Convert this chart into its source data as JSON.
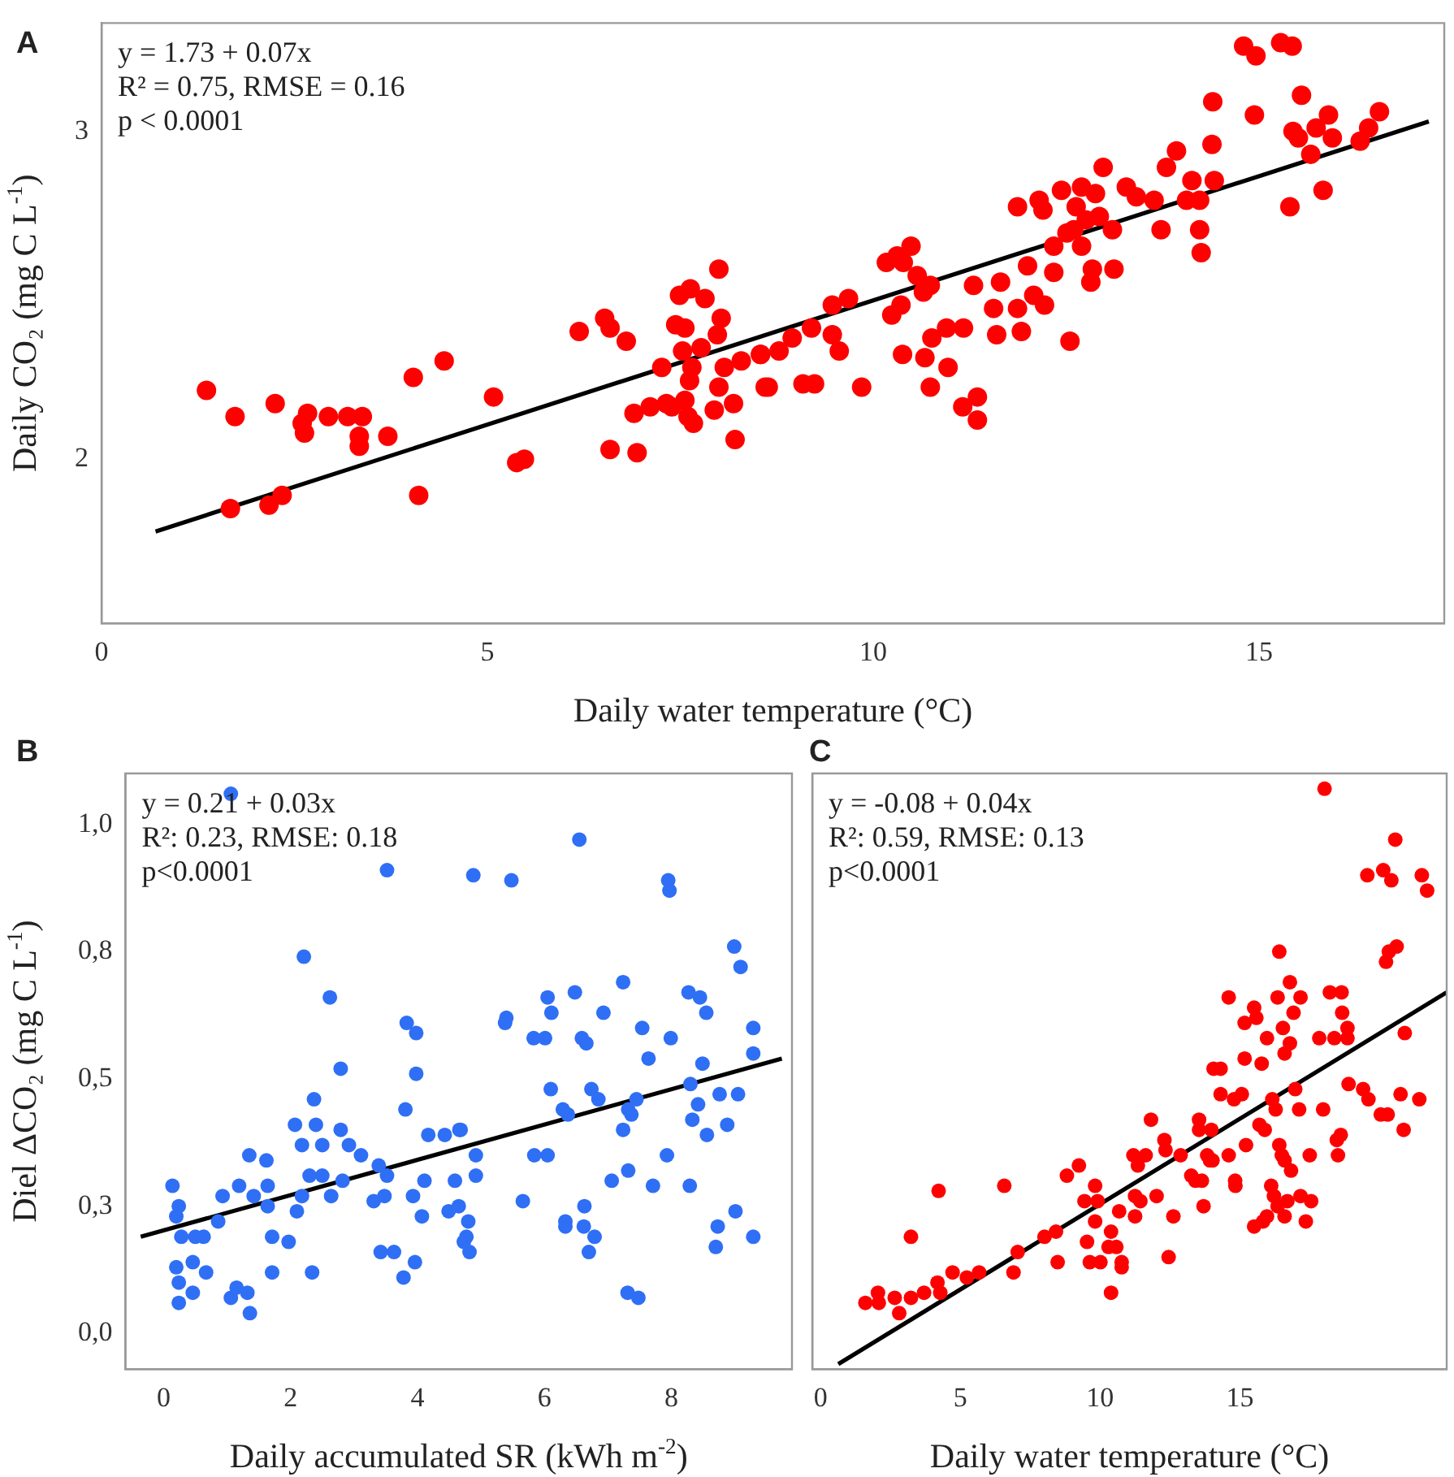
{
  "chart_data": [
    {
      "type": "scatter",
      "title": "A",
      "xlabel": "Daily water temperature (°C)",
      "ylabel": "Daily CO₂ (mg C L$^{-1}$)",
      "annotations": [
        "y = 1.73 + 0.07x",
        "R² = 0.75, RMSE = 0.16",
        "p < 0.0001"
      ],
      "xlim": [
        0,
        17.4
      ],
      "xticks": [
        0,
        5,
        10,
        15
      ],
      "ylim": [
        1.5,
        3.33
      ],
      "yticks": [
        2,
        3
      ],
      "grid": false,
      "legend": false,
      "series": [
        {
          "marker": "circle",
          "color": "#ff0000",
          "x": [
            1.36,
            1.73,
            1.67,
            2.17,
            2.34,
            2.25,
            2.67,
            2.6,
            2.63,
            2.94,
            3.19,
            3.38,
            3.34,
            3.34,
            3.71,
            4.11,
            4.04,
            4.44,
            5.08,
            5.38,
            5.48,
            6.19,
            6.52,
            6.59,
            6.8,
            6.59,
            6.94,
            6.9,
            7.11,
            7.32,
            7.39,
            7.56,
            7.26,
            7.49,
            7.63,
            7.82,
            8.0,
            8.03,
            7.98,
            7.44,
            7.56,
            7.53,
            7.77,
            7.65,
            7.62,
            7.6,
            7.67,
            8.07,
            8.0,
            7.94,
            8.19,
            8.21,
            8.29,
            8.54,
            8.6,
            8.54,
            8.64,
            8.78,
            8.95,
            9.09,
            9.24,
            9.2,
            9.47,
            9.68,
            9.47,
            9.56,
            9.85,
            10.17,
            10.31,
            10.49,
            10.39,
            10.57,
            10.74,
            10.65,
            10.36,
            10.24,
            10.38,
            10.67,
            10.76,
            10.95,
            11.17,
            10.97,
            10.74,
            11.16,
            11.35,
            11.35,
            11.3,
            11.65,
            11.56,
            11.6,
            11.87,
            11.92,
            12.08,
            12.22,
            12.0,
            12.34,
            12.55,
            11.87,
            12.15,
            12.2,
            12.44,
            12.7,
            12.88,
            12.63,
            12.76,
            12.93,
            12.51,
            12.6,
            12.34,
            12.7,
            12.84,
            12.82,
            13.12,
            13.1,
            12.98,
            13.28,
            13.41,
            13.64,
            13.73,
            13.8,
            13.93,
            14.13,
            14.06,
            14.23,
            14.23,
            14.25,
            14.42,
            14.39,
            14.4,
            14.8,
            14.96,
            14.94,
            15.28,
            15.43,
            15.55,
            15.44,
            15.51,
            15.4,
            15.67,
            15.74,
            15.9,
            15.95,
            15.83,
            16.31,
            16.42,
            16.56
          ],
          "values": [
            2.21,
            2.13,
            1.85,
            1.86,
            1.89,
            2.17,
            2.14,
            2.11,
            2.08,
            2.13,
            2.13,
            2.13,
            2.07,
            2.04,
            2.07,
            1.89,
            2.25,
            2.3,
            2.19,
            1.99,
            2.0,
            2.39,
            2.43,
            2.4,
            2.36,
            2.03,
            2.02,
            2.14,
            2.16,
            2.17,
            2.16,
            2.18,
            2.28,
            2.5,
            2.52,
            2.49,
            2.58,
            2.43,
            2.38,
            2.41,
            2.4,
            2.33,
            2.34,
            2.28,
            2.24,
            2.13,
            2.11,
            2.28,
            2.22,
            2.15,
            2.17,
            2.06,
            2.3,
            2.32,
            2.22,
            2.32,
            2.22,
            2.33,
            2.37,
            2.23,
            2.23,
            2.4,
            2.47,
            2.49,
            2.38,
            2.33,
            2.22,
            2.6,
            2.62,
            2.65,
            2.6,
            2.56,
            2.53,
            2.51,
            2.47,
            2.44,
            2.32,
            2.31,
            2.37,
            2.4,
            2.4,
            2.28,
            2.22,
            2.16,
            2.19,
            2.12,
            2.53,
            2.54,
            2.46,
            2.38,
            2.46,
            2.39,
            2.5,
            2.47,
            2.59,
            2.57,
            2.36,
            2.77,
            2.79,
            2.76,
            2.82,
            2.83,
            2.81,
            2.77,
            2.73,
            2.74,
            2.69,
            2.7,
            2.65,
            2.65,
            2.58,
            2.54,
            2.58,
            2.7,
            2.89,
            2.83,
            2.8,
            2.79,
            2.7,
            2.89,
            2.94,
            2.85,
            2.79,
            2.79,
            2.7,
            2.63,
            2.85,
            2.96,
            3.09,
            3.26,
            3.23,
            3.05,
            3.27,
            3.26,
            3.11,
            3.0,
            2.98,
            2.77,
            2.93,
            3.01,
            3.05,
            2.98,
            2.82,
            2.97,
            3.01,
            3.06
          ]
        },
        {
          "type": "line",
          "marker": "none",
          "color": "#000000",
          "x": [
            0.7,
            17.2
          ],
          "values": [
            1.78,
            3.03
          ]
        }
      ]
    },
    {
      "type": "scatter",
      "title": "B",
      "xlabel": "Daily accumulated SR (kWh m$^{-2}$)",
      "ylabel": "Diel ΔCO₂ (mg C L$^{-1}$)",
      "annotations": [
        "y = 0.21 + 0.03x",
        "R²: 0.23, RMSE: 0.18",
        "p<0.0001"
      ],
      "xlim": [
        -0.6,
        9.9
      ],
      "xticks": [
        0,
        2,
        4,
        6,
        8
      ],
      "ylim": [
        -0.07,
        1.1
      ],
      "yticks": [
        {
          "value": 0,
          "label": "0,0"
        },
        {
          "value": 0.25,
          "label": "0,3"
        },
        {
          "value": 0.5,
          "label": "0,5"
        },
        {
          "value": 0.75,
          "label": "0,8"
        },
        {
          "value": 1,
          "label": "1,0"
        }
      ],
      "grid": false,
      "legend": false,
      "series": [
        {
          "marker": "circle",
          "color": "#2f6ff5",
          "x": [
            1.06,
            2.21,
            2.62,
            2.79,
            2.37,
            3.83,
            3.98,
            3.98,
            3.81,
            3.52,
            2.07,
            2.4,
            2.18,
            2.5,
            2.79,
            2.92,
            3.11,
            1.35,
            1.62,
            0.14,
            0.24,
            0.2,
            0.28,
            0.5,
            0.63,
            0.46,
            0.67,
            0.2,
            0.24,
            0.24,
            0.46,
            1.06,
            1.15,
            1.32,
            1.36,
            0.86,
            0.93,
            1.19,
            1.42,
            1.64,
            1.64,
            1.71,
            1.97,
            1.71,
            2.34,
            2.18,
            2.1,
            2.3,
            2.5,
            2.64,
            2.82,
            3.31,
            3.48,
            3.39,
            3.52,
            3.42,
            3.63,
            3.78,
            3.96,
            3.93,
            4.07,
            4.11,
            4.17,
            4.43,
            4.66,
            4.59,
            4.49,
            4.65,
            4.73,
            4.88,
            5.48,
            6.55,
            7.95,
            7.97,
            8.99,
            9.09,
            7.24,
            6.48,
            6.05,
            6.11,
            5.4,
            5.38,
            5.83,
            6.01,
            6.59,
            6.66,
            6.93,
            7.54,
            7.64,
            7.99,
            8.27,
            8.45,
            8.55,
            9.29,
            9.29,
            8.49,
            8.3,
            8.42,
            8.76,
            9.05,
            8.33,
            8.56,
            8.88,
            6.1,
            6.29,
            6.37,
            6.74,
            6.85,
            7.32,
            7.37,
            7.45,
            7.24,
            5.84,
            6.05,
            4.92,
            4.92,
            4.68,
            5.66,
            6.33,
            6.33,
            6.63,
            6.62,
            6.79,
            6.7,
            7.06,
            7.32,
            7.71,
            7.93,
            8.29,
            9.01,
            8.73,
            8.7,
            9.29,
            7.31,
            7.48,
            4.8,
            4.77,
            4.82
          ],
          "values": [
            1.06,
            0.74,
            0.66,
            0.52,
            0.46,
            0.61,
            0.59,
            0.51,
            0.44,
            0.91,
            0.41,
            0.41,
            0.37,
            0.37,
            0.4,
            0.37,
            0.35,
            0.35,
            0.34,
            0.29,
            0.25,
            0.23,
            0.19,
            0.19,
            0.19,
            0.14,
            0.12,
            0.13,
            0.1,
            0.06,
            0.08,
            0.07,
            0.09,
            0.08,
            0.04,
            0.22,
            0.27,
            0.29,
            0.27,
            0.29,
            0.25,
            0.19,
            0.18,
            0.12,
            0.12,
            0.27,
            0.24,
            0.31,
            0.31,
            0.27,
            0.3,
            0.26,
            0.27,
            0.33,
            0.31,
            0.16,
            0.16,
            0.11,
            0.14,
            0.27,
            0.23,
            0.3,
            0.39,
            0.39,
            0.4,
            0.3,
            0.24,
            0.25,
            0.18,
            0.9,
            0.89,
            0.97,
            0.89,
            0.87,
            0.76,
            0.72,
            0.69,
            0.67,
            0.66,
            0.63,
            0.62,
            0.61,
            0.58,
            0.58,
            0.58,
            0.57,
            0.63,
            0.6,
            0.54,
            0.58,
            0.67,
            0.66,
            0.63,
            0.6,
            0.55,
            0.53,
            0.49,
            0.45,
            0.47,
            0.47,
            0.42,
            0.39,
            0.41,
            0.48,
            0.44,
            0.43,
            0.48,
            0.46,
            0.44,
            0.43,
            0.46,
            0.4,
            0.35,
            0.35,
            0.35,
            0.31,
            0.4,
            0.26,
            0.22,
            0.21,
            0.25,
            0.21,
            0.19,
            0.16,
            0.3,
            0.32,
            0.29,
            0.35,
            0.29,
            0.24,
            0.21,
            0.17,
            0.19,
            0.08,
            0.07,
            0.22,
            0.19,
            0.16
          ]
        },
        {
          "type": "line",
          "marker": "none",
          "color": "#000000",
          "x": [
            -0.36,
            9.74
          ],
          "values": [
            0.19,
            0.54
          ]
        }
      ]
    },
    {
      "type": "scatter",
      "title": "C",
      "xlabel": "Daily water temperature (°C)",
      "annotations": [
        "y = -0.08 + 0.04x",
        "R²: 0.59, RMSE: 0.13",
        "p<0.0001"
      ],
      "xlim": [
        -0.3,
        22.4
      ],
      "xticks": [
        0,
        5,
        10,
        15
      ],
      "ylim": [
        -0.07,
        1.1
      ],
      "yticks": [
        0,
        0.25,
        0.5,
        0.75,
        1
      ],
      "tick_labels": "x",
      "grid": false,
      "legend": false,
      "series": [
        {
          "marker": "circle",
          "color": "#ff0000",
          "x": [
            1.6,
            2.05,
            2.08,
            2.65,
            2.81,
            3.23,
            3.7,
            4.18,
            4.28,
            3.23,
            4.22,
            4.72,
            5.23,
            5.67,
            6.57,
            6.9,
            7.05,
            8.01,
            8.42,
            8.48,
            8.81,
            9.24,
            9.44,
            9.82,
            9.91,
            9.63,
            10.01,
            9.53,
            9.82,
            10.39,
            10.39,
            10.68,
            10.77,
            10.58,
            10.3,
            18.03,
            20.56,
            19.56,
            20.13,
            20.42,
            21.51,
            21.7,
            20.61,
            20.33,
            20.23,
            16.41,
            16.79,
            14.6,
            16.35,
            17.17,
            18.22,
            18.64,
            15.51,
            15.59,
            15.17,
            16.92,
            16.54,
            18.66,
            18.85,
            18.85,
            18.38,
            17.84,
            15.97,
            16.79,
            16.6,
            20.9,
            15.17,
            15.78,
            14.06,
            14.31,
            14.31,
            14.79,
            15.07,
            16.16,
            16.28,
            16.98,
            17.12,
            17.98,
            18.89,
            19.41,
            19.6,
            20.04,
            20.29,
            20.75,
            21.42,
            20.86,
            18.61,
            18.47,
            18.51,
            11.82,
            13.54,
            13.54,
            13.98,
            12.3,
            12.34,
            12.88,
            13.83,
            14.02,
            14.6,
            15.22,
            15.7,
            15.89,
            16.41,
            16.5,
            16.6,
            16.83,
            17.5,
            11.19,
            11.63,
            11.35,
            13.26,
            13.41,
            13.64,
            13.93,
            14.83,
            14.84,
            12.02,
            11.25,
            11.44,
            11.25,
            12.62,
            13.7,
            16.12,
            16.22,
            16.35,
            16.7,
            16.6,
            17.17,
            17.55,
            17.36,
            15.51,
            15.83,
            15.97,
            12.45,
            10.77
          ],
          "values": [
            0.06,
            0.08,
            0.06,
            0.07,
            0.04,
            0.07,
            0.08,
            0.1,
            0.08,
            0.19,
            0.28,
            0.12,
            0.11,
            0.12,
            0.29,
            0.12,
            0.16,
            0.19,
            0.2,
            0.14,
            0.31,
            0.33,
            0.26,
            0.29,
            0.26,
            0.14,
            0.14,
            0.18,
            0.22,
            0.08,
            0.2,
            0.24,
            0.13,
            0.17,
            0.17,
            1.07,
            0.97,
            0.9,
            0.91,
            0.89,
            0.9,
            0.87,
            0.76,
            0.75,
            0.73,
            0.75,
            0.69,
            0.66,
            0.66,
            0.66,
            0.67,
            0.67,
            0.64,
            0.62,
            0.61,
            0.63,
            0.6,
            0.63,
            0.6,
            0.58,
            0.58,
            0.58,
            0.58,
            0.57,
            0.55,
            0.59,
            0.54,
            0.53,
            0.52,
            0.52,
            0.47,
            0.46,
            0.47,
            0.46,
            0.44,
            0.48,
            0.44,
            0.44,
            0.49,
            0.48,
            0.46,
            0.43,
            0.43,
            0.47,
            0.46,
            0.4,
            0.39,
            0.38,
            0.35,
            0.42,
            0.42,
            0.4,
            0.4,
            0.38,
            0.36,
            0.35,
            0.35,
            0.34,
            0.35,
            0.37,
            0.41,
            0.4,
            0.37,
            0.35,
            0.34,
            0.32,
            0.35,
            0.35,
            0.35,
            0.33,
            0.31,
            0.3,
            0.3,
            0.34,
            0.3,
            0.29,
            0.27,
            0.27,
            0.26,
            0.23,
            0.23,
            0.25,
            0.29,
            0.27,
            0.25,
            0.26,
            0.23,
            0.27,
            0.26,
            0.22,
            0.21,
            0.22,
            0.23,
            0.15,
            0.14
          ]
        },
        {
          "type": "line",
          "marker": "none",
          "color": "#000000",
          "x": [
            0.63,
            22.4
          ],
          "values": [
            -0.06,
            0.67
          ]
        }
      ]
    }
  ]
}
